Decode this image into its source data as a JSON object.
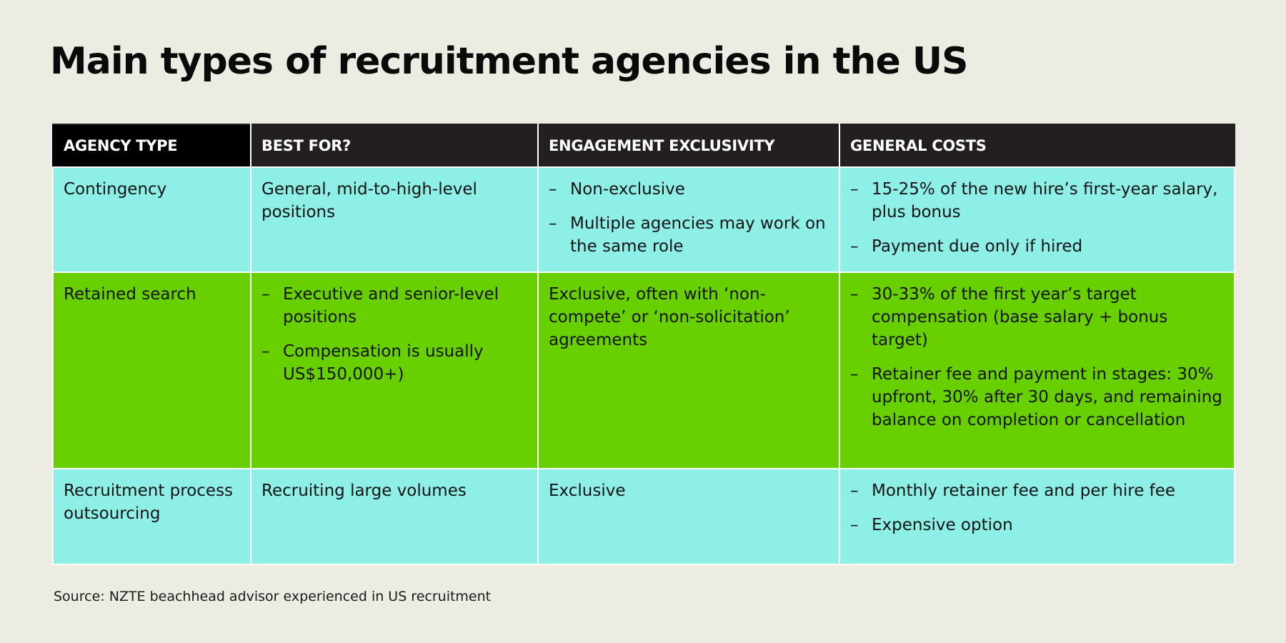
{
  "title": "Main types of recruitment agencies in the US",
  "colors": {
    "background": "#edece3",
    "header_bg": "#231f20",
    "header_first_bg": "#000000",
    "row_cyan": "#8eefe6",
    "row_green": "#68cf00",
    "divider": "#ffffff"
  },
  "table": {
    "headers": [
      "AGENCY TYPE",
      "BEST FOR?",
      "ENGAGEMENT EXCLUSIVITY",
      "GENERAL COSTS"
    ],
    "rows": [
      {
        "agency_type": "Contingency",
        "best_for": {
          "text": "General, mid-to-high-level positions",
          "bullets": []
        },
        "exclusivity": {
          "text": "",
          "bullets": [
            "Non-exclusive",
            "Multiple agencies may work on the same role"
          ]
        },
        "costs": {
          "bullets": [
            "15-25% of the new hire’s first-year salary, plus bonus",
            "Payment due only if hired"
          ]
        }
      },
      {
        "agency_type": "Retained search",
        "best_for": {
          "text": "",
          "bullets": [
            "Executive and senior-level positions",
            "Compensation is usually US$150,000+)"
          ]
        },
        "exclusivity": {
          "text": "Exclusive, often with ‘non-compete’ or ‘non-solicitation’ agreements",
          "bullets": []
        },
        "costs": {
          "bullets": [
            "30-33% of the first year’s target compensation (base salary + bonus target)",
            "Retainer fee and payment in stages: 30% upfront, 30% after 30 days, and remaining balance on completion or cancellation"
          ]
        }
      },
      {
        "agency_type": "Recruitment process outsourcing",
        "best_for": {
          "text": "Recruiting large volumes",
          "bullets": []
        },
        "exclusivity": {
          "text": "Exclusive",
          "bullets": []
        },
        "costs": {
          "bullets": [
            "Monthly retainer fee and per hire fee",
            "Expensive option"
          ]
        }
      }
    ],
    "bullet_glyph": "–"
  },
  "source": "Source: NZTE beachhead advisor experienced in US recruitment"
}
